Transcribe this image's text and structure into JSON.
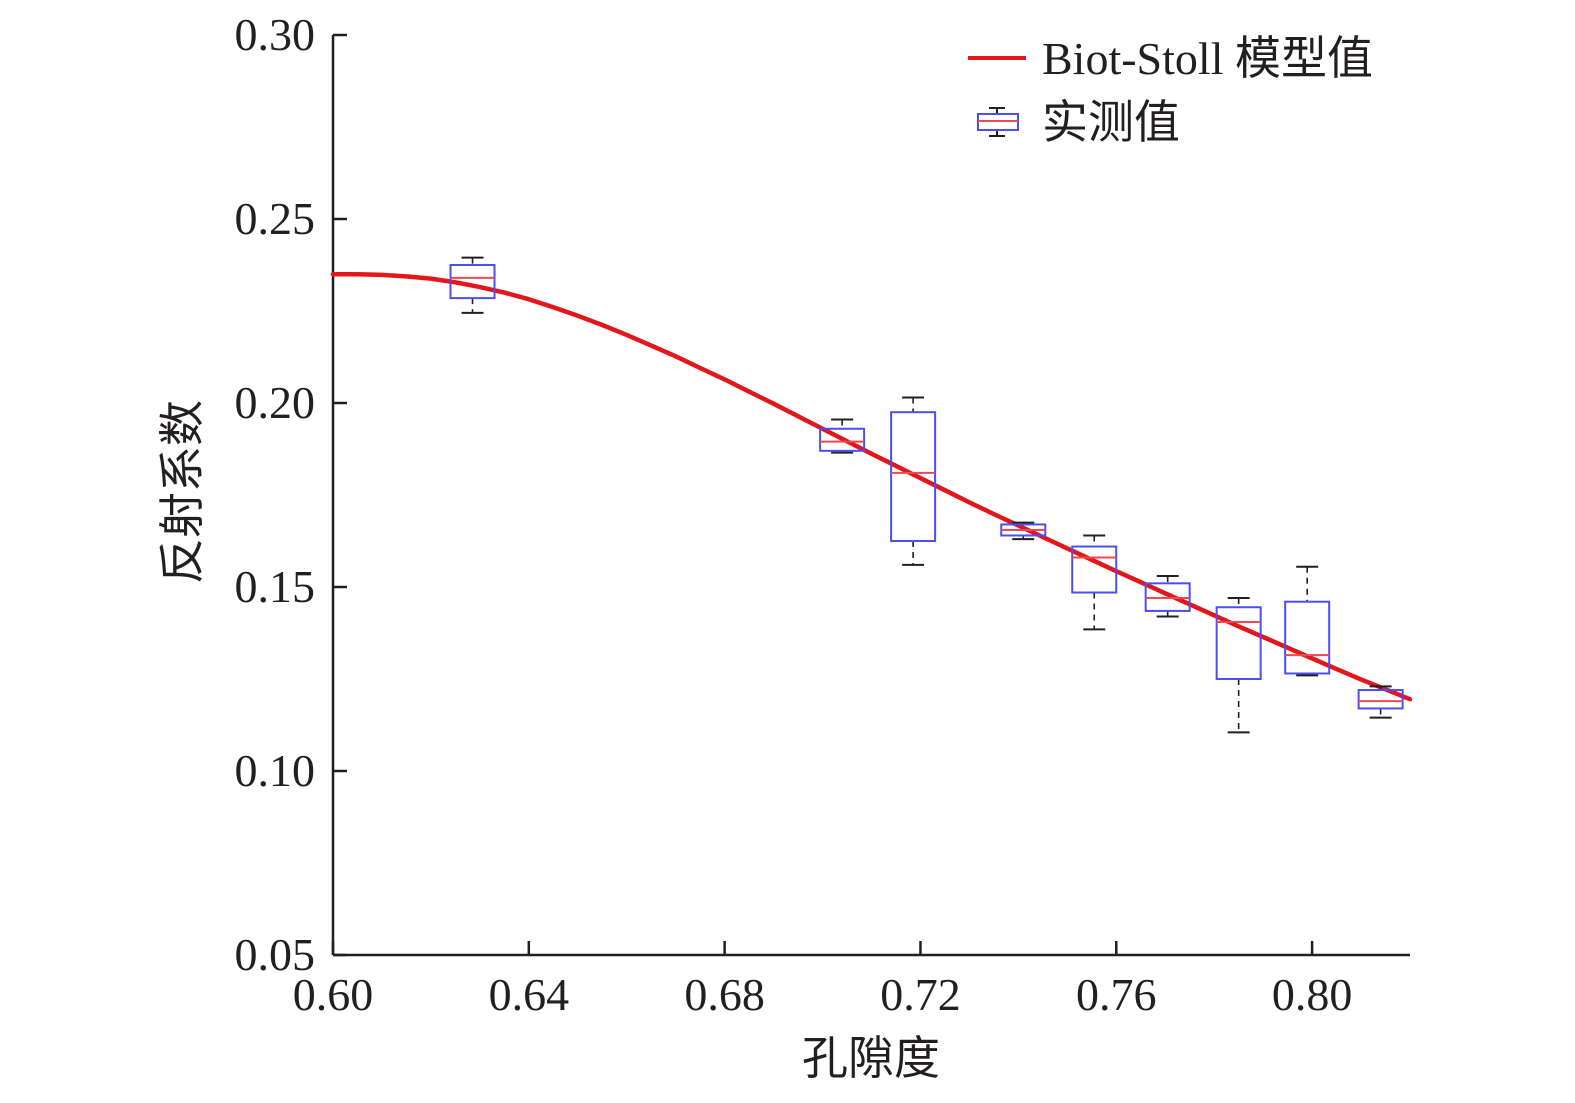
{
  "chart_data": {
    "type": "box+line",
    "title": "",
    "xlabel": "孔隙度",
    "ylabel": "反射系数",
    "xlim": [
      0.6,
      0.82
    ],
    "ylim": [
      0.05,
      0.3
    ],
    "x_ticks": [
      "0.60",
      "0.64",
      "0.68",
      "0.72",
      "0.76",
      "0.80"
    ],
    "y_ticks": [
      "0.05",
      "0.10",
      "0.15",
      "0.20",
      "0.25",
      "0.30"
    ],
    "grid": false,
    "legend_position": "top-right",
    "colors": {
      "axis": "#231f20",
      "model_line": "#e3161b",
      "box_edge": "#4a4ef5",
      "median": "#f0484f",
      "whisker": "#231f20"
    },
    "series": [
      {
        "name": "Biot-Stoll 模型值",
        "kind": "line",
        "x": [
          0.6,
          0.605,
          0.61,
          0.615,
          0.62,
          0.625,
          0.63,
          0.635,
          0.64,
          0.645,
          0.65,
          0.655,
          0.66,
          0.665,
          0.67,
          0.675,
          0.68,
          0.685,
          0.69,
          0.695,
          0.7,
          0.705,
          0.71,
          0.715,
          0.72,
          0.725,
          0.73,
          0.735,
          0.74,
          0.745,
          0.75,
          0.755,
          0.76,
          0.765,
          0.77,
          0.775,
          0.78,
          0.785,
          0.79,
          0.795,
          0.8,
          0.805,
          0.81,
          0.815,
          0.82
        ],
        "y": [
          0.235,
          0.235,
          0.2348,
          0.2344,
          0.2338,
          0.2328,
          0.2315,
          0.23,
          0.2282,
          0.226,
          0.2237,
          0.2212,
          0.2185,
          0.2156,
          0.2127,
          0.2095,
          0.2064,
          0.2031,
          0.1998,
          0.1964,
          0.193,
          0.1896,
          0.1862,
          0.1829,
          0.1796,
          0.1763,
          0.173,
          0.1698,
          0.1667,
          0.1636,
          0.1605,
          0.1574,
          0.1543,
          0.1513,
          0.1483,
          0.1453,
          0.1423,
          0.1393,
          0.1364,
          0.1335,
          0.1306,
          0.1277,
          0.1249,
          0.1222,
          0.1195
        ]
      },
      {
        "name": "实测值",
        "kind": "box",
        "boxes": [
          {
            "x": 0.6285,
            "min": 0.2245,
            "q1": 0.2285,
            "median": 0.234,
            "q3": 0.2375,
            "max": 0.2395
          },
          {
            "x": 0.704,
            "min": 0.1865,
            "q1": 0.187,
            "median": 0.1895,
            "q3": 0.193,
            "max": 0.1955
          },
          {
            "x": 0.7185,
            "min": 0.156,
            "q1": 0.1625,
            "median": 0.181,
            "q3": 0.1975,
            "max": 0.2015
          },
          {
            "x": 0.741,
            "min": 0.163,
            "q1": 0.164,
            "median": 0.1655,
            "q3": 0.167,
            "max": 0.1675
          },
          {
            "x": 0.7555,
            "min": 0.1385,
            "q1": 0.1485,
            "median": 0.158,
            "q3": 0.161,
            "max": 0.164
          },
          {
            "x": 0.7705,
            "min": 0.142,
            "q1": 0.1435,
            "median": 0.147,
            "q3": 0.151,
            "max": 0.153
          },
          {
            "x": 0.785,
            "min": 0.1105,
            "q1": 0.125,
            "median": 0.1405,
            "q3": 0.1445,
            "max": 0.147
          },
          {
            "x": 0.799,
            "min": 0.126,
            "q1": 0.1265,
            "median": 0.1315,
            "q3": 0.146,
            "max": 0.1555
          },
          {
            "x": 0.814,
            "min": 0.1145,
            "q1": 0.117,
            "median": 0.119,
            "q3": 0.122,
            "max": 0.123
          }
        ]
      }
    ]
  }
}
